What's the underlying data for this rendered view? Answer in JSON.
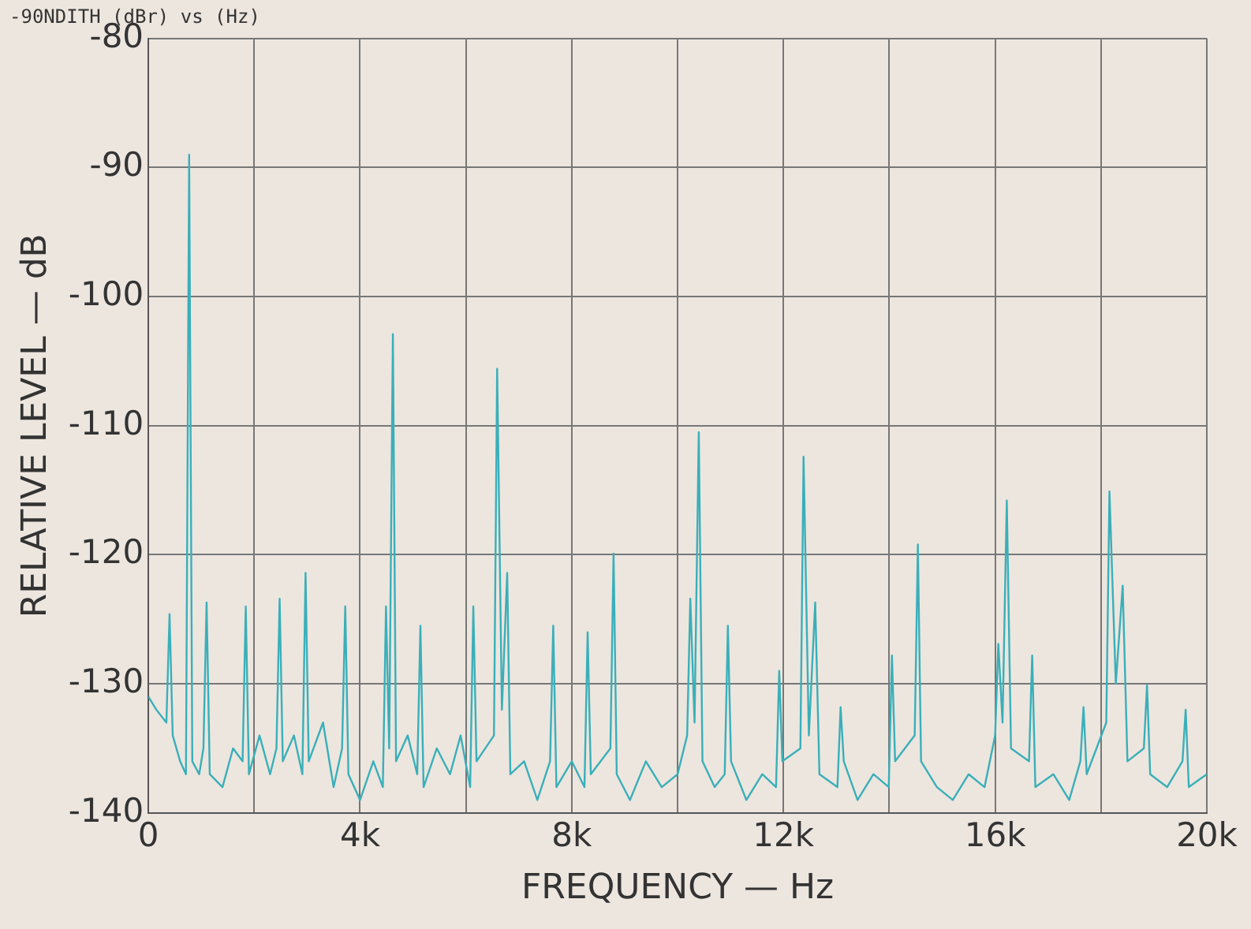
{
  "chart_data": {
    "type": "line",
    "title": "-90NDITH (dBr) vs (Hz)",
    "xlabel": "FREQUENCY — Hz",
    "ylabel": "RELATIVE LEVEL — dB",
    "xlim": [
      0,
      20000
    ],
    "ylim": [
      -140,
      -80
    ],
    "xticks": [
      0,
      {
        "value": 2000,
        "label": null
      },
      {
        "value": 4000,
        "label": "4k"
      },
      {
        "value": 6000,
        "label": null
      },
      {
        "value": 8000,
        "label": "8k"
      },
      {
        "value": 10000,
        "label": null
      },
      {
        "value": 12000,
        "label": "12k"
      },
      {
        "value": 14000,
        "label": null
      },
      {
        "value": 16000,
        "label": "16k"
      },
      {
        "value": 18000,
        "label": null
      },
      {
        "value": 20000,
        "label": "20k"
      }
    ],
    "yticks": [
      -140,
      -130,
      -120,
      -110,
      -100,
      -90,
      -80
    ],
    "grid": true,
    "marker": "none",
    "line_style": "solid",
    "x": [
      0,
      150,
      340,
      400,
      460,
      600,
      710,
      770,
      830,
      960,
      1040,
      1100,
      1160,
      1400,
      1600,
      1780,
      1840,
      1900,
      2100,
      2300,
      2420,
      2480,
      2540,
      2750,
      2910,
      2970,
      3030,
      3300,
      3500,
      3660,
      3720,
      3780,
      4000,
      4250,
      4430,
      4490,
      4550,
      4620,
      4680,
      4900,
      5080,
      5140,
      5200,
      5450,
      5700,
      5900,
      6080,
      6140,
      6200,
      6530,
      6590,
      6680,
      6780,
      6840,
      7100,
      7350,
      7590,
      7650,
      7710,
      8000,
      8240,
      8300,
      8360,
      8730,
      8790,
      8850,
      9100,
      9400,
      9700,
      10000,
      10180,
      10240,
      10320,
      10400,
      10470,
      10700,
      10890,
      10950,
      11010,
      11300,
      11600,
      11860,
      11920,
      11980,
      12320,
      12380,
      12480,
      12600,
      12680,
      13020,
      13080,
      13140,
      13400,
      13700,
      13990,
      14050,
      14110,
      14480,
      14540,
      14600,
      14900,
      15200,
      15500,
      15800,
      16000,
      16060,
      16140,
      16220,
      16300,
      16640,
      16700,
      16760,
      17100,
      17400,
      17610,
      17670,
      17730,
      18100,
      18160,
      18280,
      18410,
      18500,
      18810,
      18870,
      18930,
      19250,
      19540,
      19600,
      19660,
      20000
    ],
    "series": [
      {
        "color": "#3aafb9",
        "values": [
          -131,
          -132,
          -133,
          -124.6,
          -134,
          -136,
          -137,
          -89,
          -136,
          -137,
          -135,
          -123.7,
          -137,
          -138,
          -135,
          -136,
          -124,
          -137,
          -134,
          -137,
          -135,
          -123.4,
          -136,
          -134,
          -137,
          -121.4,
          -136,
          -133,
          -138,
          -135,
          -124,
          -137,
          -139,
          -136,
          -138,
          -124,
          -135,
          -102.9,
          -136,
          -134,
          -137,
          -125.5,
          -138,
          -135,
          -137,
          -134,
          -138,
          -124,
          -136,
          -134,
          -105.6,
          -132,
          -121.4,
          -137,
          -136,
          -139,
          -136,
          -125.5,
          -138,
          -136,
          -138,
          -126,
          -137,
          -135,
          -119.9,
          -137,
          -139,
          -136,
          -138,
          -137,
          -134,
          -123.4,
          -133,
          -110.5,
          -136,
          -138,
          -137,
          -125.5,
          -136,
          -139,
          -137,
          -138,
          -129,
          -136,
          -135,
          -112.4,
          -134,
          -123.7,
          -137,
          -138,
          -131.8,
          -136,
          -139,
          -137,
          -138,
          -127.8,
          -136,
          -134,
          -119.2,
          -136,
          -138,
          -139,
          -137,
          -138,
          -134,
          -126.9,
          -133,
          -115.8,
          -135,
          -136,
          -127.8,
          -138,
          -137,
          -139,
          -136,
          -131.8,
          -137,
          -133,
          -115.1,
          -130,
          -122.4,
          -136,
          -135,
          -130.1,
          -137,
          -138,
          -136,
          -132,
          -138,
          -137
        ]
      }
    ]
  }
}
